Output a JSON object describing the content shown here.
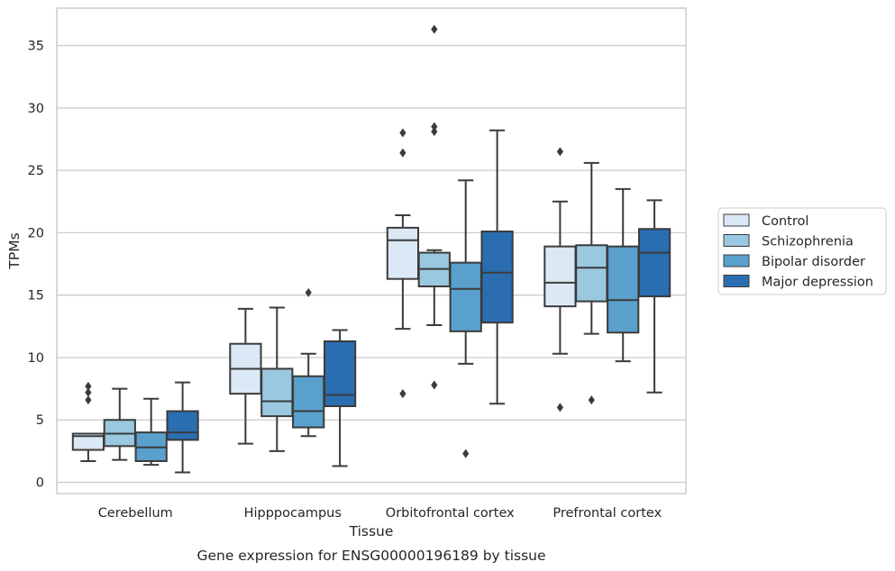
{
  "chart_data": {
    "type": "box",
    "xlabel": "Tissue",
    "ylabel": "TPMs",
    "caption": "Gene expression for ENSG00000196189 by tissue",
    "ylim": [
      -0.9,
      38.0
    ],
    "yticks": [
      0,
      5,
      10,
      15,
      20,
      25,
      30,
      35
    ],
    "grid": "horizontal",
    "legend_position": "right",
    "categories": [
      "Cerebellum",
      "Hipppocampus",
      "Orbitofrontal cortex",
      "Prefrontal cortex"
    ],
    "series": [
      {
        "name": "Control",
        "color": "#dbe9f6",
        "boxes": [
          {
            "whislo": 1.7,
            "q1": 2.6,
            "med": 3.7,
            "q3": 3.9,
            "whishi": 3.9,
            "fliers": [
              6.6,
              7.2,
              7.7
            ]
          },
          {
            "whislo": 3.1,
            "q1": 7.1,
            "med": 9.1,
            "q3": 11.1,
            "whishi": 13.9,
            "fliers": []
          },
          {
            "whislo": 12.3,
            "q1": 16.3,
            "med": 19.4,
            "q3": 20.4,
            "whishi": 21.4,
            "fliers": [
              7.1,
              26.4,
              28.0
            ]
          },
          {
            "whislo": 10.3,
            "q1": 14.1,
            "med": 16.0,
            "q3": 18.9,
            "whishi": 22.5,
            "fliers": [
              6.0,
              26.5
            ]
          }
        ]
      },
      {
        "name": "Schizophrenia",
        "color": "#9ac8e0",
        "boxes": [
          {
            "whislo": 1.8,
            "q1": 2.9,
            "med": 3.9,
            "q3": 5.0,
            "whishi": 7.5,
            "fliers": []
          },
          {
            "whislo": 2.5,
            "q1": 5.3,
            "med": 6.5,
            "q3": 9.1,
            "whishi": 14.0,
            "fliers": []
          },
          {
            "whislo": 12.6,
            "q1": 15.7,
            "med": 17.1,
            "q3": 18.4,
            "whishi": 18.6,
            "fliers": [
              7.8,
              28.1,
              28.5,
              36.3
            ]
          },
          {
            "whislo": 11.9,
            "q1": 14.5,
            "med": 17.2,
            "q3": 19.0,
            "whishi": 25.6,
            "fliers": [
              6.6
            ]
          }
        ]
      },
      {
        "name": "Bipolar disorder",
        "color": "#5aa0cd",
        "boxes": [
          {
            "whislo": 1.4,
            "q1": 1.7,
            "med": 2.8,
            "q3": 4.0,
            "whishi": 6.7,
            "fliers": []
          },
          {
            "whislo": 3.7,
            "q1": 4.4,
            "med": 5.7,
            "q3": 8.5,
            "whishi": 10.3,
            "fliers": [
              15.2
            ]
          },
          {
            "whislo": 9.5,
            "q1": 12.1,
            "med": 15.5,
            "q3": 17.6,
            "whishi": 24.2,
            "fliers": [
              2.3
            ]
          },
          {
            "whislo": 9.7,
            "q1": 12.0,
            "med": 14.6,
            "q3": 18.9,
            "whishi": 23.5,
            "fliers": []
          }
        ]
      },
      {
        "name": "Major depression",
        "color": "#2a6eb1",
        "boxes": [
          {
            "whislo": 0.8,
            "q1": 3.4,
            "med": 4.0,
            "q3": 5.7,
            "whishi": 8.0,
            "fliers": []
          },
          {
            "whislo": 1.3,
            "q1": 6.1,
            "med": 7.0,
            "q3": 11.3,
            "whishi": 12.2,
            "fliers": []
          },
          {
            "whislo": 6.3,
            "q1": 12.8,
            "med": 16.8,
            "q3": 20.1,
            "whishi": 28.2,
            "fliers": []
          },
          {
            "whislo": 7.2,
            "q1": 14.9,
            "med": 18.4,
            "q3": 20.3,
            "whishi": 22.6,
            "fliers": []
          }
        ]
      }
    ]
  },
  "colors": {
    "line": "#3b3b3b",
    "grid": "#cccccc",
    "frame": "#cccccc"
  }
}
